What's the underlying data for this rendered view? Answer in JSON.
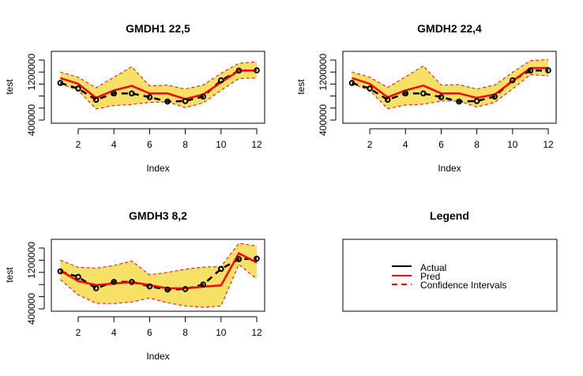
{
  "colors": {
    "actual": "#000000",
    "pred": "#FF0000",
    "ci_line": "#FF0000",
    "ci_fill": "#F6E066",
    "axis": "#000000"
  },
  "chart_data": [
    {
      "type": "line",
      "title": "GMDH1 22,5",
      "xlabel": "Index",
      "ylabel": "test",
      "x": [
        1,
        2,
        3,
        4,
        5,
        6,
        7,
        8,
        9,
        10,
        11,
        12
      ],
      "xticks": [
        2,
        4,
        6,
        8,
        10,
        12
      ],
      "xlim": [
        1,
        12
      ],
      "yticks": [
        400000,
        600000,
        800000,
        1000000,
        1200000,
        1400000
      ],
      "ytick_labels": [
        "400000",
        "",
        "",
        "",
        "1200000",
        ""
      ],
      "ylim": [
        400000,
        1400000
      ],
      "series": [
        {
          "name": "Actual",
          "style": "dashed-points",
          "values": [
            1017000,
            925000,
            738000,
            843000,
            843000,
            783000,
            708000,
            717000,
            791000,
            1062000,
            1224000,
            1228000
          ]
        },
        {
          "name": "Pred",
          "style": "solid",
          "values": [
            1100000,
            1004000,
            770000,
            895000,
            970000,
            843000,
            843000,
            751000,
            826000,
            1026000,
            1224000,
            1224000
          ]
        },
        {
          "name": "Upper CI",
          "style": "dashed",
          "values": [
            1200000,
            1114000,
            938000,
            1114000,
            1290000,
            970000,
            983000,
            917000,
            983000,
            1180000,
            1346000,
            1368000
          ]
        },
        {
          "name": "Lower CI",
          "style": "dashed",
          "values": [
            1004000,
            895000,
            585000,
            642000,
            660000,
            695000,
            704000,
            607000,
            686000,
            895000,
            1092000,
            1101000
          ]
        }
      ],
      "grid": false
    },
    {
      "type": "line",
      "title": "GMDH2 22,4",
      "xlabel": "Index",
      "ylabel": "test",
      "x": [
        1,
        2,
        3,
        4,
        5,
        6,
        7,
        8,
        9,
        10,
        11,
        12
      ],
      "xticks": [
        2,
        4,
        6,
        8,
        10,
        12
      ],
      "xlim": [
        1,
        12
      ],
      "yticks": [
        400000,
        600000,
        800000,
        1000000,
        1200000,
        1400000
      ],
      "ytick_labels": [
        "400000",
        "",
        "",
        "",
        "1200000",
        ""
      ],
      "ylim": [
        400000,
        1400000
      ],
      "series": [
        {
          "name": "Actual",
          "style": "dashed-points",
          "values": [
            1017000,
            925000,
            738000,
            843000,
            843000,
            783000,
            708000,
            717000,
            791000,
            1062000,
            1224000,
            1228000
          ]
        },
        {
          "name": "Pred",
          "style": "solid",
          "values": [
            1100000,
            1004000,
            780000,
            895000,
            975000,
            845000,
            845000,
            770000,
            826000,
            1049000,
            1267000,
            1267000
          ]
        },
        {
          "name": "Upper CI",
          "style": "dashed",
          "values": [
            1200000,
            1114000,
            945000,
            1120000,
            1303000,
            983000,
            991000,
            917000,
            983000,
            1193000,
            1391000,
            1408000
          ]
        },
        {
          "name": "Lower CI",
          "style": "dashed",
          "values": [
            1004000,
            895000,
            590000,
            650000,
            665000,
            717000,
            717000,
            618000,
            695000,
            917000,
            1158000,
            1136000
          ]
        }
      ],
      "grid": false
    },
    {
      "type": "line",
      "title": "GMDH3 8,2",
      "xlabel": "Index",
      "ylabel": "test",
      "x": [
        1,
        2,
        3,
        4,
        5,
        6,
        7,
        8,
        9,
        10,
        11,
        12
      ],
      "xticks": [
        2,
        4,
        6,
        8,
        10,
        12
      ],
      "xlim": [
        1,
        12
      ],
      "yticks": [
        400000,
        600000,
        800000,
        1000000,
        1200000,
        1400000
      ],
      "ytick_labels": [
        "400000",
        "",
        "",
        "",
        "1200000",
        ""
      ],
      "ylim": [
        400000,
        1400000
      ],
      "series": [
        {
          "name": "Actual",
          "style": "dashed-points",
          "values": [
            1017000,
            925000,
            738000,
            843000,
            843000,
            769000,
            717000,
            726000,
            800000,
            1056000,
            1217000,
            1226000
          ]
        },
        {
          "name": "Pred",
          "style": "solid",
          "values": [
            1030000,
            856000,
            791000,
            817000,
            840000,
            791000,
            738000,
            738000,
            765000,
            786000,
            1313000,
            1161000
          ]
        },
        {
          "name": "Upper CI",
          "style": "dashed",
          "values": [
            1200000,
            1083000,
            1070000,
            1113000,
            1187000,
            960000,
            1000000,
            1052000,
            1087000,
            1096000,
            1478000,
            1434000
          ]
        },
        {
          "name": "Lower CI",
          "style": "dashed",
          "values": [
            882000,
            630000,
            491000,
            487000,
            513000,
            578000,
            500000,
            448000,
            426000,
            448000,
            1130000,
            891000
          ]
        }
      ],
      "grid": false
    }
  ],
  "legend": {
    "title": "Legend",
    "placement": "center",
    "entries": [
      {
        "label": "Actual",
        "style": "solid",
        "color": "#000000"
      },
      {
        "label": "Pred",
        "style": "solid",
        "color": "#FF0000"
      },
      {
        "label": "Confidence Intervals",
        "style": "dashed",
        "color": "#FF0000"
      }
    ]
  }
}
